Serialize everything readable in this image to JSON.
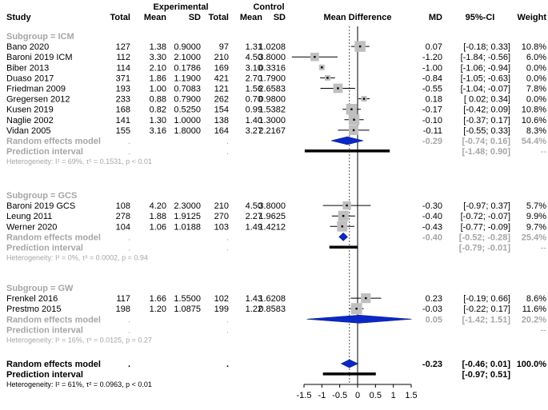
{
  "chart_data": {
    "type": "forest",
    "title": "",
    "xlabel": "",
    "ylabel": "",
    "xlim": [
      -1.5,
      1.5
    ],
    "x_ticks": [
      -1.5,
      -1,
      -0.5,
      0,
      0.5,
      1,
      1.5
    ],
    "x_tick_labels": [
      "-1.5",
      "-1",
      "-0.5",
      "0",
      "0.5",
      "1",
      "1.5"
    ],
    "reference_line": 0,
    "dotted_line": -0.23,
    "headers": {
      "experimental": "Experimental",
      "control": "Control",
      "study": "Study",
      "total_e": "Total",
      "mean_e": "Mean",
      "sd_e": "SD",
      "total_c": "Total",
      "mean_c": "Mean",
      "sd_c": "SD",
      "mean_diff": "Mean Difference",
      "md": "MD",
      "ci": "95%-CI",
      "weight": "Weight"
    },
    "subgroups": [
      {
        "label": "Subgroup = ICM",
        "studies": [
          {
            "study": "Bano 2020",
            "total_e": "127",
            "mean_e": "1.38",
            "sd_e": "0.9000",
            "total_c": "97",
            "mean_c": "1.31",
            "sd_c": "1.0208",
            "md": "0.07",
            "ci": "[-0.18; 0.33]",
            "weight": "10.8%",
            "est": 0.07,
            "lo": -0.18,
            "hi": 0.33,
            "w": 10.8
          },
          {
            "study": "Baroni 2019 ICM",
            "total_e": "112",
            "mean_e": "3.30",
            "sd_e": "2.1000",
            "total_c": "210",
            "mean_c": "4.50",
            "sd_c": "3.8000",
            "md": "-1.20",
            "ci": "[-1.84; -0.56]",
            "weight": "6.0%",
            "est": -1.2,
            "lo": -1.84,
            "hi": -0.56,
            "w": 6.0
          },
          {
            "study": "Biber 2013",
            "total_e": "114",
            "mean_e": "2.10",
            "sd_e": "0.1786",
            "total_c": "169",
            "mean_c": "3.10",
            "sd_c": "0.3316",
            "md": "-1.00",
            "ci": "[-1.06; -0.94]",
            "weight": "0.0%",
            "est": -1.0,
            "lo": -1.06,
            "hi": -0.94,
            "w": 0.0
          },
          {
            "study": "Duaso 2017",
            "total_e": "371",
            "mean_e": "1.86",
            "sd_e": "1.1900",
            "total_c": "421",
            "mean_c": "2.70",
            "sd_c": "1.7900",
            "md": "-0.84",
            "ci": "[-1.05; -0.63]",
            "weight": "0.0%",
            "est": -0.84,
            "lo": -1.05,
            "hi": -0.63,
            "w": 0.0
          },
          {
            "study": "Friedman 2009",
            "total_e": "193",
            "mean_e": "1.00",
            "sd_e": "0.7083",
            "total_c": "121",
            "mean_c": "1.56",
            "sd_c": "2.6583",
            "md": "-0.55",
            "ci": "[-1.04; -0.07]",
            "weight": "7.8%",
            "est": -0.55,
            "lo": -1.04,
            "hi": -0.07,
            "w": 7.8
          },
          {
            "study": "Gregersen 2012",
            "total_e": "233",
            "mean_e": "0.88",
            "sd_e": "0.7900",
            "total_c": "262",
            "mean_c": "0.70",
            "sd_c": "0.9800",
            "md": "0.18",
            "ci": "[ 0.02; 0.34]",
            "weight": "0.0%",
            "est": 0.18,
            "lo": 0.02,
            "hi": 0.34,
            "w": 0.0
          },
          {
            "study": "Kusen 2019",
            "total_e": "168",
            "mean_e": "0.82",
            "sd_e": "0.5250",
            "total_c": "154",
            "mean_c": "0.99",
            "sd_c": "1.5382",
            "md": "-0.17",
            "ci": "[-0.42; 0.09]",
            "weight": "10.8%",
            "est": -0.17,
            "lo": -0.42,
            "hi": 0.09,
            "w": 10.8
          },
          {
            "study": "Naglie 2002",
            "total_e": "141",
            "mean_e": "1.30",
            "sd_e": "1.0000",
            "total_c": "138",
            "mean_c": "1.40",
            "sd_c": "1.3000",
            "md": "-0.10",
            "ci": "[-0.37; 0.17]",
            "weight": "10.6%",
            "est": -0.1,
            "lo": -0.37,
            "hi": 0.17,
            "w": 10.6
          },
          {
            "study": "Vidan 2005",
            "total_e": "155",
            "mean_e": "3.16",
            "sd_e": "1.8000",
            "total_c": "164",
            "mean_c": "3.27",
            "sd_c": "2.2167",
            "md": "-0.11",
            "ci": "[-0.55; 0.33]",
            "weight": "8.3%",
            "est": -0.11,
            "lo": -0.55,
            "hi": 0.33,
            "w": 8.3
          }
        ],
        "random": {
          "label": "Random effects model",
          "md": "-0.29",
          "ci": "[-0.74; 0.16]",
          "weight": "54.4%",
          "est": -0.29,
          "lo": -0.74,
          "hi": 0.16
        },
        "prediction": {
          "label": "Prediction interval",
          "ci": "[-1.48; 0.90]",
          "weight": "--",
          "lo": -1.48,
          "hi": 0.9
        },
        "heterogeneity": "Heterogeneity: I² = 69%, τ² = 0.1531, p < 0.01"
      },
      {
        "label": "Subgroup = GCS",
        "studies": [
          {
            "study": "Baroni 2019 GCS",
            "total_e": "108",
            "mean_e": "4.20",
            "sd_e": "2.3000",
            "total_c": "210",
            "mean_c": "4.50",
            "sd_c": "3.8000",
            "md": "-0.30",
            "ci": "[-0.97; 0.37]",
            "weight": "5.7%",
            "est": -0.3,
            "lo": -0.97,
            "hi": 0.37,
            "w": 5.7
          },
          {
            "study": "Leung 2011",
            "total_e": "278",
            "mean_e": "1.88",
            "sd_e": "1.9125",
            "total_c": "270",
            "mean_c": "2.27",
            "sd_c": "1.9625",
            "md": "-0.40",
            "ci": "[-0.72; -0.07]",
            "weight": "9.9%",
            "est": -0.4,
            "lo": -0.72,
            "hi": -0.07,
            "w": 9.9
          },
          {
            "study": "Werner 2020",
            "total_e": "104",
            "mean_e": "1.06",
            "sd_e": "1.0188",
            "total_c": "103",
            "mean_c": "1.49",
            "sd_c": "1.4212",
            "md": "-0.43",
            "ci": "[-0.77; -0.09]",
            "weight": "9.7%",
            "est": -0.43,
            "lo": -0.77,
            "hi": -0.09,
            "w": 9.7
          }
        ],
        "random": {
          "label": "Random effects model",
          "md": "-0.40",
          "ci": "[-0.52; -0.28]",
          "weight": "25.4%",
          "est": -0.4,
          "lo": -0.52,
          "hi": -0.28
        },
        "prediction": {
          "label": "Prediction interval",
          "ci": "[-0.79; -0.01]",
          "weight": "--",
          "lo": -0.79,
          "hi": -0.01
        },
        "heterogeneity": "Heterogeneity: I² = 0%, τ² = 0.0002, p = 0.94"
      },
      {
        "label": "Subgroup = GW",
        "studies": [
          {
            "study": "Frenkel 2016",
            "total_e": "117",
            "mean_e": "1.66",
            "sd_e": "1.5500",
            "total_c": "102",
            "mean_c": "1.43",
            "sd_c": "1.6208",
            "md": "0.23",
            "ci": "[-0.19; 0.66]",
            "weight": "8.6%",
            "est": 0.23,
            "lo": -0.19,
            "hi": 0.66,
            "w": 8.6
          },
          {
            "study": "Prestmo 2015",
            "total_e": "198",
            "mean_e": "1.20",
            "sd_e": "1.0875",
            "total_c": "199",
            "mean_c": "1.22",
            "sd_c": "0.8583",
            "md": "-0.03",
            "ci": "[-0.22; 0.17]",
            "weight": "11.6%",
            "est": -0.03,
            "lo": -0.22,
            "hi": 0.17,
            "w": 11.6
          }
        ],
        "random": {
          "label": "Random effects model",
          "md": "0.05",
          "ci": "[-1.42; 1.51]",
          "weight": "20.2%",
          "est": 0.05,
          "lo": -1.42,
          "hi": 1.51
        },
        "prediction": {
          "label": "Prediction interval",
          "ci": "",
          "weight": "--",
          "lo": null,
          "hi": null
        },
        "heterogeneity": "Heterogeneity: I² = 16%, τ² = 0.0125, p = 0.27"
      }
    ],
    "overall": {
      "random": {
        "label": "Random effects model",
        "total_e": ".",
        "total_c": ".",
        "md": "-0.23",
        "ci": "[-0.46; 0.01]",
        "weight": "100.0%",
        "est": -0.23,
        "lo": -0.46,
        "hi": 0.01
      },
      "prediction": {
        "label": "Prediction interval",
        "ci": "[-0.97; 0.51]",
        "lo": -0.97,
        "hi": 0.51
      },
      "heterogeneity": "Heterogeneity: I² = 61%, τ² = 0.0963, p < 0.01"
    }
  },
  "colors": {
    "text": "#000000",
    "muted": "#a6a6a6",
    "diamond": "#0a28c8",
    "square": "#bfbfbf"
  }
}
